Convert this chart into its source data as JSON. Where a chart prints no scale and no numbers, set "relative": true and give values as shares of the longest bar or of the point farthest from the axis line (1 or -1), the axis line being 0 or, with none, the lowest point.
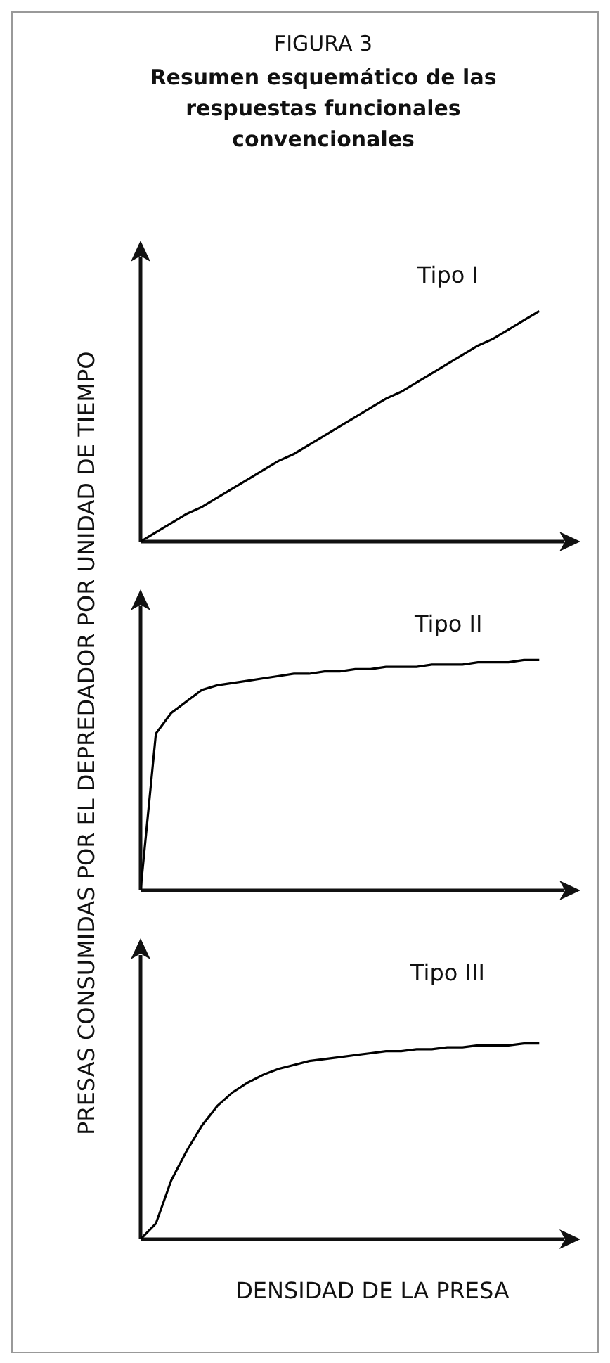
{
  "chart_data": [
    {
      "type": "line",
      "title": "FIGURA 3",
      "subtitle": "Resumen esquemático de las respuestas funcionales convencionales",
      "ylabel": "PRESAS CONSUMIDAS POR EL DEPREDADOR POR UNIDAD DE TIEMPO",
      "relative": true,
      "annotations": [
        "Tipo I"
      ],
      "categories": [
        null,
        null,
        null,
        null,
        null,
        null,
        null,
        null,
        null,
        null,
        null,
        null,
        null,
        null,
        null,
        null,
        null,
        null,
        null,
        null,
        null,
        null,
        null,
        null,
        null,
        null,
        null
      ],
      "series": [
        {
          "color": "#000000",
          "values": [
            0,
            0.04,
            0.08,
            0.12,
            0.15,
            0.19,
            0.23,
            0.27,
            0.31,
            0.35,
            0.38,
            0.42,
            0.46,
            0.5,
            0.54,
            0.58,
            0.62,
            0.65,
            0.69,
            0.73,
            0.77,
            0.81,
            0.85,
            0.88,
            0.92,
            0.96,
            1
          ]
        }
      ]
    },
    {
      "type": "line",
      "relative": true,
      "annotations": [
        "Tipo II"
      ],
      "categories": [
        null,
        null,
        null,
        null,
        null,
        null,
        null,
        null,
        null,
        null,
        null,
        null,
        null,
        null,
        null,
        null,
        null,
        null,
        null,
        null,
        null,
        null,
        null,
        null,
        null,
        null,
        null
      ],
      "series": [
        {
          "color": "#000000",
          "values": [
            0,
            0.68,
            0.77,
            0.82,
            0.87,
            0.89,
            0.9,
            0.91,
            0.92,
            0.93,
            0.94,
            0.94,
            0.95,
            0.95,
            0.96,
            0.96,
            0.97,
            0.97,
            0.97,
            0.98,
            0.98,
            0.98,
            0.99,
            0.99,
            0.99,
            1,
            1
          ]
        }
      ]
    },
    {
      "type": "line",
      "xlabel": "DENSIDAD DE LA PRESA",
      "relative": true,
      "annotations": [
        "Tipo III"
      ],
      "categories": [
        null,
        null,
        null,
        null,
        null,
        null,
        null,
        null,
        null,
        null,
        null,
        null,
        null,
        null,
        null,
        null,
        null,
        null,
        null,
        null,
        null,
        null,
        null,
        null,
        null,
        null,
        null
      ],
      "series": [
        {
          "color": "#000000",
          "values": [
            0,
            0.08,
            0.3,
            0.45,
            0.58,
            0.68,
            0.75,
            0.8,
            0.84,
            0.87,
            0.89,
            0.91,
            0.92,
            0.93,
            0.94,
            0.95,
            0.96,
            0.96,
            0.97,
            0.97,
            0.98,
            0.98,
            0.99,
            0.99,
            0.99,
            1,
            1
          ]
        }
      ]
    }
  ]
}
